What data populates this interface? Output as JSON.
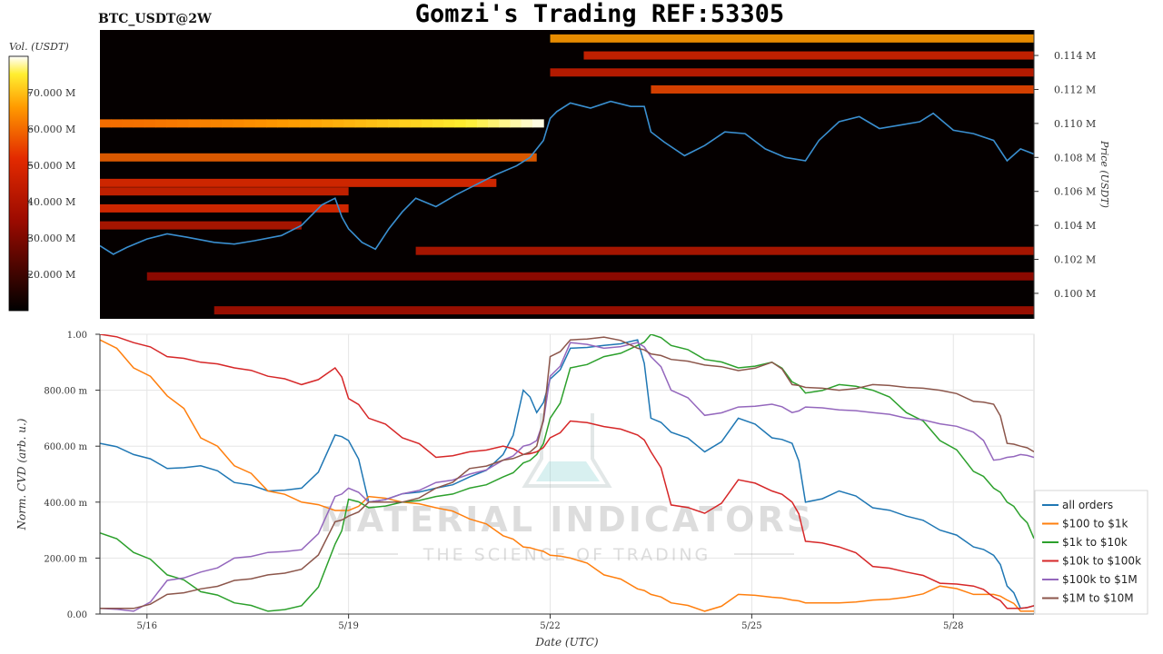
{
  "header": {
    "symbol": "BTC_USDT@2W",
    "title": "Gomzi's Trading REF:53305"
  },
  "watermark": {
    "line1": "MATERIAL INDICATORS",
    "line2": "THE SCIENCE OF TRADING"
  },
  "colors": {
    "price_line": "#3a8fd0",
    "heat_low": "#000000",
    "heat_mid": "#cc1100",
    "heat_high": "#ff9900",
    "heat_max": "#ffffff"
  },
  "chart_data": [
    {
      "type": "heatmap",
      "colorbar_label": "Vol. (USDT)",
      "colorbar_ticks": [
        "20.000 M",
        "30.000 M",
        "40.000 M",
        "50.000 M",
        "60.000 M",
        "70.000 M"
      ],
      "colorbar_range": [
        10,
        80
      ],
      "ylabel": "Price (USDT)",
      "y_ticks": [
        "0.100 M",
        "0.102 M",
        "0.104 M",
        "0.106 M",
        "0.108 M",
        "0.110 M",
        "0.112 M",
        "0.114 M"
      ],
      "y_tick_values": [
        0.1,
        0.102,
        0.104,
        0.106,
        0.108,
        0.11,
        0.112,
        0.114
      ],
      "ylim": [
        0.0985,
        0.1155
      ],
      "xlim": [
        15.3,
        29.2
      ],
      "price_series": {
        "name": "price",
        "x": [
          15.3,
          15.5,
          15.7,
          16.0,
          16.3,
          16.6,
          17.0,
          17.3,
          17.6,
          18.0,
          18.3,
          18.6,
          18.8,
          18.9,
          19.0,
          19.2,
          19.4,
          19.6,
          19.8,
          20.0,
          20.3,
          20.6,
          20.9,
          21.2,
          21.5,
          21.7,
          21.9,
          22.0,
          22.1,
          22.3,
          22.6,
          22.9,
          23.2,
          23.4,
          23.5,
          23.7,
          24.0,
          24.3,
          24.6,
          24.9,
          25.2,
          25.5,
          25.8,
          26.0,
          26.3,
          26.6,
          26.9,
          27.2,
          27.5,
          27.7,
          28.0,
          28.3,
          28.6,
          28.8,
          29.0,
          29.2
        ],
        "y": [
          0.1028,
          0.1023,
          0.1027,
          0.1032,
          0.1035,
          0.1033,
          0.103,
          0.1029,
          0.1031,
          0.1034,
          0.104,
          0.1052,
          0.1056,
          0.1045,
          0.1038,
          0.103,
          0.1026,
          0.1038,
          0.1048,
          0.1056,
          0.1051,
          0.1058,
          0.1064,
          0.107,
          0.1075,
          0.108,
          0.109,
          0.1103,
          0.1107,
          0.1112,
          0.1109,
          0.1113,
          0.111,
          0.111,
          0.1095,
          0.1089,
          0.1081,
          0.1087,
          0.1095,
          0.1094,
          0.1085,
          0.108,
          0.1078,
          0.109,
          0.1101,
          0.1104,
          0.1097,
          0.1099,
          0.1101,
          0.1106,
          0.1096,
          0.1094,
          0.109,
          0.1078,
          0.1085,
          0.1082
        ]
      },
      "bands": [
        {
          "price": 0.11,
          "x_end": 21.9,
          "intensity": 0.95
        },
        {
          "price": 0.108,
          "x_end": 21.8,
          "intensity": 0.7
        },
        {
          "price": 0.1065,
          "x_end": 21.2,
          "intensity": 0.6
        },
        {
          "price": 0.106,
          "x_end": 19.0,
          "intensity": 0.55
        },
        {
          "price": 0.105,
          "x_end": 19.0,
          "intensity": 0.6
        },
        {
          "price": 0.104,
          "x_end": 18.3,
          "intensity": 0.45
        },
        {
          "price": 0.115,
          "x_start": 22.0,
          "intensity": 0.8
        },
        {
          "price": 0.114,
          "x_start": 22.5,
          "intensity": 0.55
        },
        {
          "price": 0.113,
          "x_start": 22.0,
          "intensity": 0.5
        },
        {
          "price": 0.112,
          "x_start": 23.5,
          "intensity": 0.65
        },
        {
          "price": 0.1025,
          "x_start": 20.0,
          "intensity": 0.45
        },
        {
          "price": 0.101,
          "x_start": 16.0,
          "intensity": 0.35
        },
        {
          "price": 0.099,
          "x_start": 17.0,
          "intensity": 0.4
        }
      ]
    },
    {
      "type": "line",
      "xlabel": "Date (UTC)",
      "ylabel": "Norm. CVD (arb. u.)",
      "x_ticks": [
        "5/16",
        "5/19",
        "5/22",
        "5/25",
        "5/28"
      ],
      "x_tick_values": [
        16,
        19,
        22,
        25,
        28
      ],
      "xlim": [
        15.3,
        29.2
      ],
      "y_ticks": [
        "0.00",
        "200.00 m",
        "400.00 m",
        "600.00 m",
        "800.00 m",
        "1.00"
      ],
      "y_tick_values": [
        0,
        0.2,
        0.4,
        0.6,
        0.8,
        1.0
      ],
      "ylim": [
        0,
        1.0
      ],
      "grid": true,
      "legend_position": "right",
      "x": [
        15.3,
        15.8,
        16.3,
        16.8,
        17.3,
        17.8,
        18.3,
        18.8,
        19.0,
        19.3,
        19.8,
        20.3,
        20.8,
        21.3,
        21.6,
        21.8,
        22.0,
        22.3,
        22.8,
        23.3,
        23.5,
        23.8,
        24.3,
        24.8,
        25.3,
        25.6,
        25.8,
        26.3,
        26.8,
        27.3,
        27.8,
        28.3,
        28.6,
        28.8,
        29.0,
        29.2
      ],
      "series": [
        {
          "name": "all orders",
          "color": "#1f77b4",
          "values": [
            0.61,
            0.57,
            0.52,
            0.53,
            0.47,
            0.44,
            0.45,
            0.64,
            0.62,
            0.4,
            0.43,
            0.45,
            0.49,
            0.57,
            0.8,
            0.72,
            0.84,
            0.95,
            0.96,
            0.98,
            0.7,
            0.65,
            0.58,
            0.7,
            0.63,
            0.61,
            0.4,
            0.44,
            0.38,
            0.35,
            0.3,
            0.24,
            0.21,
            0.1,
            0.02,
            0.03
          ]
        },
        {
          "name": "$100 to $1k",
          "color": "#ff7f0e",
          "values": [
            0.98,
            0.88,
            0.78,
            0.63,
            0.53,
            0.44,
            0.4,
            0.37,
            0.37,
            0.42,
            0.4,
            0.38,
            0.34,
            0.28,
            0.24,
            0.23,
            0.21,
            0.2,
            0.14,
            0.09,
            0.07,
            0.04,
            0.01,
            0.07,
            0.06,
            0.05,
            0.04,
            0.04,
            0.05,
            0.06,
            0.1,
            0.07,
            0.07,
            0.05,
            0.01,
            0.01
          ]
        },
        {
          "name": "$1k to $10k",
          "color": "#2ca02c",
          "values": [
            0.29,
            0.22,
            0.14,
            0.08,
            0.04,
            0.01,
            0.03,
            0.25,
            0.41,
            0.38,
            0.4,
            0.42,
            0.45,
            0.49,
            0.54,
            0.57,
            0.7,
            0.88,
            0.92,
            0.96,
            1.0,
            0.96,
            0.91,
            0.88,
            0.9,
            0.83,
            0.79,
            0.82,
            0.8,
            0.72,
            0.62,
            0.51,
            0.45,
            0.4,
            0.35,
            0.27
          ]
        },
        {
          "name": "$10k to $100k",
          "color": "#d62728",
          "values": [
            1.0,
            0.97,
            0.92,
            0.9,
            0.88,
            0.85,
            0.82,
            0.88,
            0.77,
            0.7,
            0.63,
            0.56,
            0.58,
            0.6,
            0.57,
            0.58,
            0.63,
            0.69,
            0.67,
            0.64,
            0.58,
            0.39,
            0.36,
            0.48,
            0.44,
            0.4,
            0.26,
            0.24,
            0.17,
            0.15,
            0.11,
            0.1,
            0.06,
            0.02,
            0.02,
            0.03
          ]
        },
        {
          "name": "$100k to $1M",
          "color": "#9467bd",
          "values": [
            0.02,
            0.01,
            0.12,
            0.15,
            0.2,
            0.22,
            0.23,
            0.42,
            0.45,
            0.4,
            0.43,
            0.47,
            0.5,
            0.55,
            0.6,
            0.62,
            0.85,
            0.97,
            0.95,
            0.97,
            0.92,
            0.8,
            0.71,
            0.74,
            0.75,
            0.72,
            0.74,
            0.73,
            0.72,
            0.7,
            0.68,
            0.65,
            0.55,
            0.56,
            0.57,
            0.56
          ]
        },
        {
          "name": "$1M to $10M",
          "color": "#8c564b",
          "values": [
            0.02,
            0.02,
            0.07,
            0.09,
            0.12,
            0.14,
            0.16,
            0.33,
            0.35,
            0.4,
            0.4,
            0.45,
            0.52,
            0.55,
            0.57,
            0.6,
            0.92,
            0.98,
            0.99,
            0.95,
            0.93,
            0.91,
            0.89,
            0.87,
            0.9,
            0.82,
            0.81,
            0.8,
            0.82,
            0.81,
            0.8,
            0.76,
            0.75,
            0.61,
            0.6,
            0.58
          ]
        }
      ]
    }
  ]
}
